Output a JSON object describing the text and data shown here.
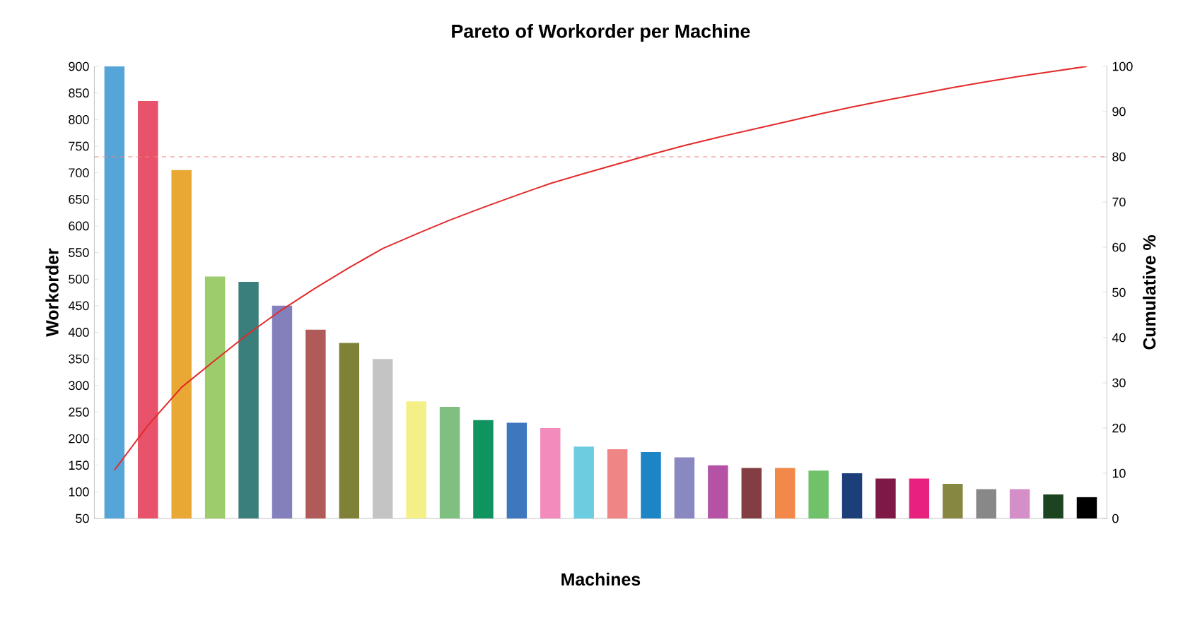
{
  "chart_data": {
    "type": "bar",
    "title": "Pareto of Workorder per Machine",
    "xlabel": "Machines",
    "ylabel": "Workorder",
    "y2label": "Cumulative %",
    "categories": [
      null,
      null,
      null,
      null,
      null,
      null,
      null,
      null,
      null,
      null,
      null,
      null,
      null,
      null,
      null,
      null,
      null,
      null,
      null,
      null,
      null,
      null,
      null,
      null,
      null,
      null,
      null,
      null,
      null,
      null
    ],
    "series": [
      {
        "colors": [
          "#56a5d8",
          "#e8526a",
          "#e8a833",
          "#9ccc6c",
          "#3a7f7c",
          "#8480be",
          "#b05a59",
          "#7f8136",
          "#c4c4c4",
          "#f4ef86",
          "#7fc080",
          "#0f9460",
          "#3f77bf",
          "#f38bbd",
          "#6ccde0",
          "#f08585",
          "#1d84c5",
          "#8988c0",
          "#b552a5",
          "#823e43",
          "#f2894a",
          "#6fc26a",
          "#1c3f7a",
          "#7e1846",
          "#e8217f",
          "#868740",
          "#888888",
          "#d48fc8",
          "#1d4420",
          "#000000"
        ],
        "values": [
          900,
          835,
          705,
          505,
          495,
          450,
          405,
          380,
          350,
          270,
          260,
          235,
          230,
          220,
          185,
          180,
          175,
          165,
          150,
          145,
          145,
          140,
          135,
          125,
          125,
          115,
          105,
          105,
          95,
          90
        ]
      },
      {
        "type": "line",
        "axis": "y2",
        "color": "#e32a2a",
        "values": [
          10.7,
          20.6,
          29.0,
          35.0,
          40.9,
          46.2,
          51.0,
          55.5,
          59.7,
          62.9,
          66.0,
          68.8,
          71.5,
          74.1,
          76.3,
          78.4,
          80.5,
          82.5,
          84.3,
          86.0,
          87.7,
          89.4,
          91.0,
          92.5,
          93.9,
          95.3,
          96.6,
          97.8,
          98.9,
          100
        ]
      }
    ],
    "ylim": [
      50,
      900
    ],
    "yticks": [
      50,
      100,
      150,
      200,
      250,
      300,
      350,
      400,
      450,
      500,
      550,
      600,
      650,
      700,
      750,
      800,
      850,
      900
    ],
    "y2lim": [
      0,
      100
    ],
    "y2ticks": [
      0,
      10,
      20,
      30,
      40,
      50,
      60,
      70,
      80,
      90,
      100
    ],
    "ref_lines": [
      {
        "axis": "y2",
        "value": 80,
        "color": "#f08080",
        "line_style": "dashed"
      }
    ]
  }
}
